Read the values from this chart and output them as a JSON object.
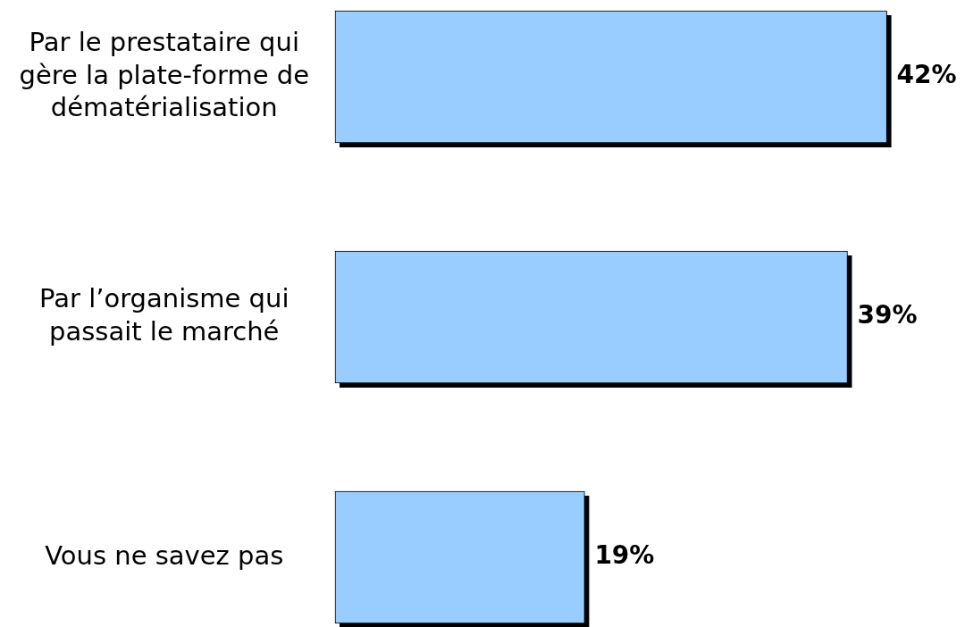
{
  "chart_data": {
    "type": "bar",
    "orientation": "horizontal",
    "categories": [
      "Par le prestataire qui gère la plate-forme de dématérialisation",
      "Par l’organisme qui passait le marché",
      "Vous ne savez pas"
    ],
    "values": [
      42,
      39,
      19
    ],
    "color": "#99ccff",
    "value_labels": [
      "42%",
      "39%",
      "19%"
    ]
  }
}
